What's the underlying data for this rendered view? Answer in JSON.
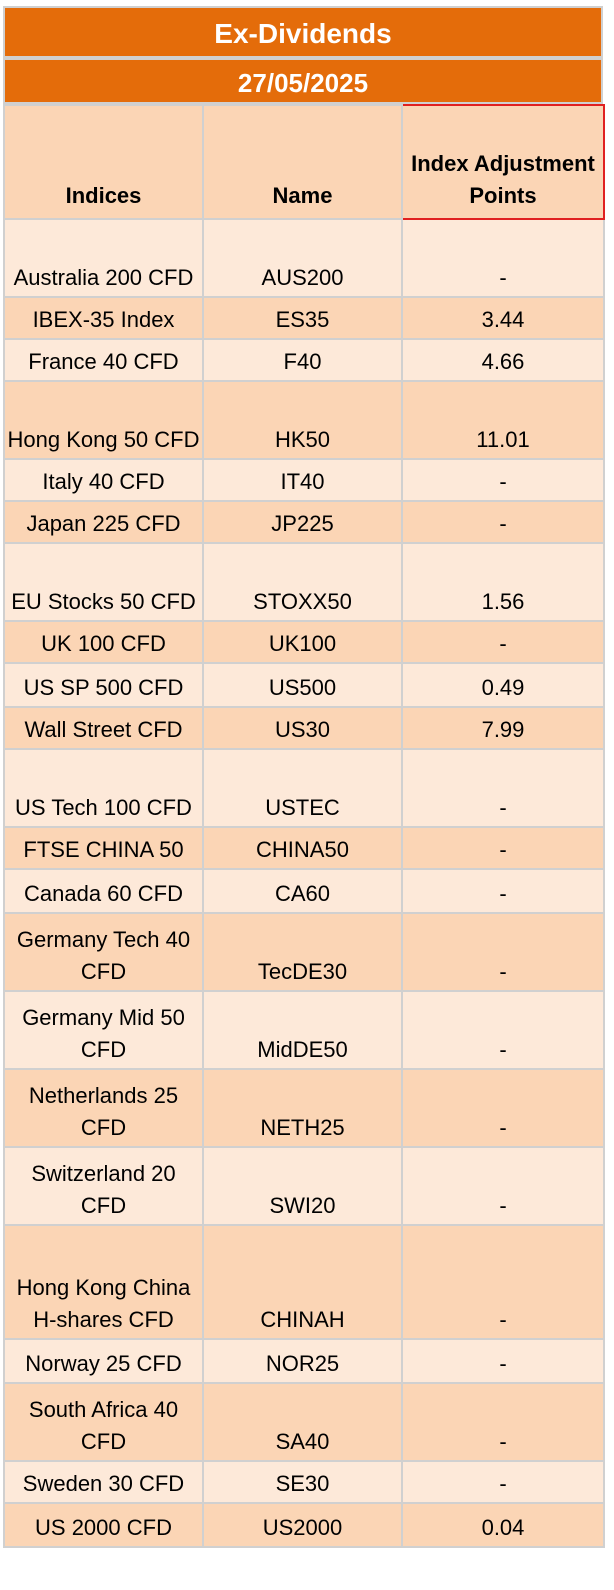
{
  "header": {
    "title": "Ex-Dividends",
    "date": "27/05/2025"
  },
  "columns": {
    "indices": "Indices",
    "name": "Name",
    "points": "Index Adjustment Points"
  },
  "rows": [
    {
      "index": "Australia 200 CFD",
      "name": "AUS200",
      "points": "-",
      "h": 78
    },
    {
      "index": "IBEX-35 Index",
      "name": "ES35",
      "points": "3.44",
      "h": 42
    },
    {
      "index": "France 40 CFD",
      "name": "F40",
      "points": "4.66",
      "h": 42
    },
    {
      "index": "Hong Kong 50 CFD",
      "name": "HK50",
      "points": "11.01",
      "h": 78
    },
    {
      "index": "Italy 40 CFD",
      "name": "IT40",
      "points": "-",
      "h": 42
    },
    {
      "index": "Japan 225 CFD",
      "name": "JP225",
      "points": "-",
      "h": 42
    },
    {
      "index": "EU Stocks 50 CFD",
      "name": "STOXX50",
      "points": "1.56",
      "h": 78
    },
    {
      "index": "UK 100 CFD",
      "name": "UK100",
      "points": "-",
      "h": 42
    },
    {
      "index": "US SP 500 CFD",
      "name": "US500",
      "points": "0.49",
      "h": 44
    },
    {
      "index": "Wall Street CFD",
      "name": "US30",
      "points": "7.99",
      "h": 42
    },
    {
      "index": "US Tech 100 CFD",
      "name": "USTEC",
      "points": "-",
      "h": 78
    },
    {
      "index": "FTSE CHINA 50",
      "name": "CHINA50",
      "points": "-",
      "h": 42
    },
    {
      "index": "Canada 60 CFD",
      "name": "CA60",
      "points": "-",
      "h": 44
    },
    {
      "index": "Germany Tech 40 CFD",
      "name": "TecDE30",
      "points": "-",
      "h": 78
    },
    {
      "index": "Germany Mid 50 CFD",
      "name": "MidDE50",
      "points": "-",
      "h": 78
    },
    {
      "index": "Netherlands 25 CFD",
      "name": "NETH25",
      "points": "-",
      "h": 78
    },
    {
      "index": "Switzerland 20 CFD",
      "name": "SWI20",
      "points": "-",
      "h": 78
    },
    {
      "index": "Hong Kong China H-shares CFD",
      "name": "CHINAH",
      "points": "-",
      "h": 114
    },
    {
      "index": "Norway 25 CFD",
      "name": "NOR25",
      "points": "-",
      "h": 44
    },
    {
      "index": "South Africa 40 CFD",
      "name": "SA40",
      "points": "-",
      "h": 78
    },
    {
      "index": "Sweden 30 CFD",
      "name": "SE30",
      "points": "-",
      "h": 42
    },
    {
      "index": "US 2000 CFD",
      "name": "US2000",
      "points": "0.04",
      "h": 44
    }
  ]
}
